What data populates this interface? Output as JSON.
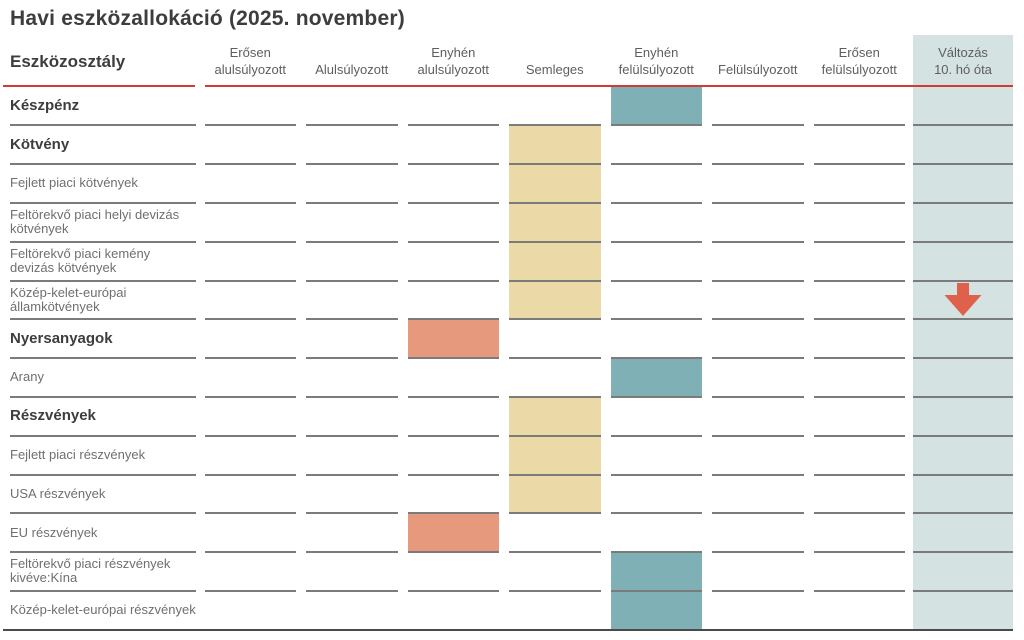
{
  "title": "Havi eszközallokáció (2025. november)",
  "table": {
    "row_header": "Eszközosztály",
    "columns": [
      {
        "id": "strongly-underweight",
        "line1": "Erősen",
        "line2": "alulsúlyozott"
      },
      {
        "id": "underweight",
        "line1": "",
        "line2": "Alulsúlyozott"
      },
      {
        "id": "slightly-underweight",
        "line1": "Enyhén",
        "line2": "alulsúlyozott"
      },
      {
        "id": "neutral",
        "line1": "",
        "line2": "Semleges"
      },
      {
        "id": "slightly-overweight",
        "line1": "Enyhén",
        "line2": "felülsúlyozott"
      },
      {
        "id": "overweight",
        "line1": "",
        "line2": "Felülsúlyozott"
      },
      {
        "id": "strongly-overweight",
        "line1": "Erősen",
        "line2": "felülsúlyozott"
      }
    ],
    "change_column": {
      "line1": "Változás",
      "line2": "10. hó óta"
    },
    "rows": [
      {
        "label": "Készpénz",
        "bold": true,
        "col": 4,
        "tone": "slight_overweight",
        "change": null
      },
      {
        "label": "Kötvény",
        "bold": true,
        "col": 3,
        "tone": "neutral",
        "change": null
      },
      {
        "label": "Fejlett piaci kötvények",
        "bold": false,
        "col": 3,
        "tone": "neutral",
        "change": null
      },
      {
        "label": "Feltörekvő piaci helyi devizás kötvények",
        "bold": false,
        "col": 3,
        "tone": "neutral",
        "change": null
      },
      {
        "label": "Feltörekvő piaci kemény devizás kötvények",
        "bold": false,
        "col": 3,
        "tone": "neutral",
        "change": null
      },
      {
        "label": "Közép-kelet-európai államkötvények",
        "bold": false,
        "col": 3,
        "tone": "neutral",
        "change": "down"
      },
      {
        "label": "Nyersanyagok",
        "bold": true,
        "col": 2,
        "tone": "slight_underweight",
        "change": null
      },
      {
        "label": "Arany",
        "bold": false,
        "col": 4,
        "tone": "slight_overweight",
        "change": null
      },
      {
        "label": "Részvények",
        "bold": true,
        "col": 3,
        "tone": "neutral",
        "change": null
      },
      {
        "label": "Fejlett piaci részvények",
        "bold": false,
        "col": 3,
        "tone": "neutral",
        "change": null
      },
      {
        "label": "USA részvények",
        "bold": false,
        "col": 3,
        "tone": "neutral",
        "change": null
      },
      {
        "label": "EU részvények",
        "bold": false,
        "col": 2,
        "tone": "slight_underweight",
        "change": null
      },
      {
        "label": "Feltörekvő piaci részvények kivéve:Kína",
        "bold": false,
        "col": 4,
        "tone": "slight_overweight",
        "change": null
      },
      {
        "label": "Közép-kelet-európai részvények",
        "bold": false,
        "col": 4,
        "tone": "slight_overweight",
        "change": null
      }
    ]
  },
  "colors": {
    "slight_overweight": "#7fb0b5",
    "neutral": "#ecd9a8",
    "slight_underweight": "#e7997e",
    "change_column_bg": "#d4e2e1",
    "arrow": "#e0614b",
    "header_rule": "#d23b35",
    "row_rule": "#7b7b7b",
    "bottom_rule": "#4a4a4a"
  },
  "chart_data": {
    "type": "table",
    "title": "Havi eszközallokáció (2025. november)",
    "row_header": "Eszközosztály",
    "columns": [
      "Erősen alulsúlyozott",
      "Alulsúlyozott",
      "Enyhén alulsúlyozott",
      "Semleges",
      "Enyhén felülsúlyozott",
      "Felülsúlyozott",
      "Erősen felülsúlyozott",
      "Változás 10. hó óta"
    ],
    "rows": [
      {
        "label": "Készpénz",
        "weighting": "Enyhén felülsúlyozott",
        "change_since_month_10": null
      },
      {
        "label": "Kötvény",
        "weighting": "Semleges",
        "change_since_month_10": null
      },
      {
        "label": "Fejlett piaci kötvények",
        "weighting": "Semleges",
        "change_since_month_10": null
      },
      {
        "label": "Feltörekvő piaci helyi devizás kötvények",
        "weighting": "Semleges",
        "change_since_month_10": null
      },
      {
        "label": "Feltörekvő piaci kemény devizás kötvények",
        "weighting": "Semleges",
        "change_since_month_10": null
      },
      {
        "label": "Közép-kelet-európai államkötvények",
        "weighting": "Semleges",
        "change_since_month_10": "down"
      },
      {
        "label": "Nyersanyagok",
        "weighting": "Enyhén alulsúlyozott",
        "change_since_month_10": null
      },
      {
        "label": "Arany",
        "weighting": "Enyhén felülsúlyozott",
        "change_since_month_10": null
      },
      {
        "label": "Részvények",
        "weighting": "Semleges",
        "change_since_month_10": null
      },
      {
        "label": "Fejlett piaci részvények",
        "weighting": "Semleges",
        "change_since_month_10": null
      },
      {
        "label": "USA részvények",
        "weighting": "Semleges",
        "change_since_month_10": null
      },
      {
        "label": "EU részvények",
        "weighting": "Enyhén alulsúlyozott",
        "change_since_month_10": null
      },
      {
        "label": "Feltörekvő piaci részvények kivéve:Kína",
        "weighting": "Enyhén felülsúlyozott",
        "change_since_month_10": null
      },
      {
        "label": "Közép-kelet-európai részvények",
        "weighting": "Enyhén felülsúlyozott",
        "change_since_month_10": null
      }
    ]
  }
}
